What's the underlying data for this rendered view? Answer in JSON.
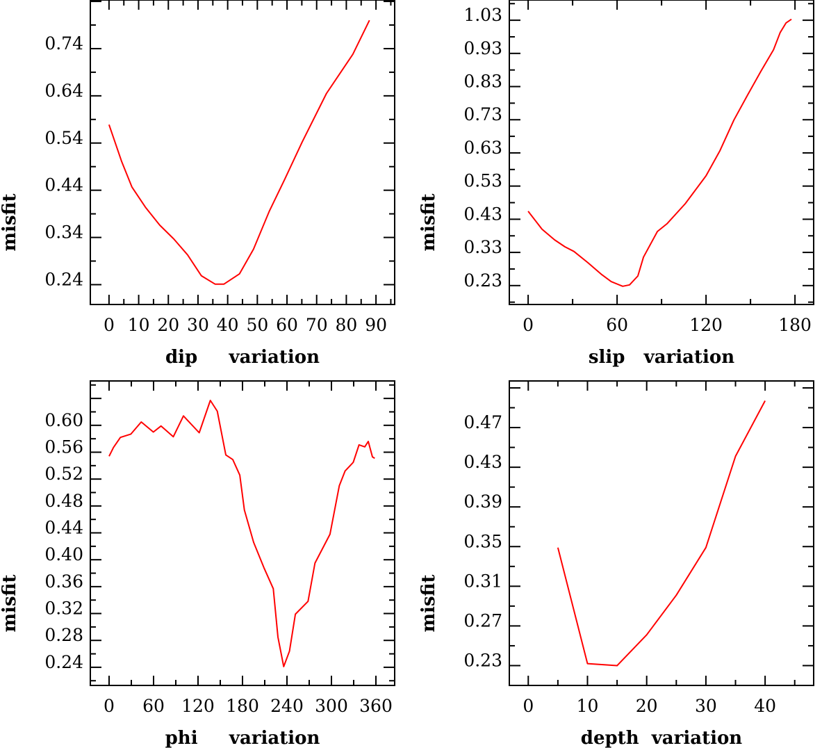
{
  "chart_data": [
    {
      "type": "line",
      "xlabel": "dip     variation",
      "ylabel": "misfit",
      "xlim": [
        -6.3,
        96.3
      ],
      "ylim": [
        0.198,
        0.843
      ],
      "xticks": [
        0,
        10,
        20,
        30,
        40,
        50,
        60,
        70,
        80,
        90
      ],
      "xtick_labels": [
        "0",
        "10",
        "20",
        "30",
        "40",
        "50",
        "60",
        "70",
        "80",
        "90"
      ],
      "yticks": [
        0.24,
        0.34,
        0.44,
        0.54,
        0.64,
        0.74
      ],
      "ytick_labels": [
        "0.24",
        "0.34",
        "0.44",
        "0.54",
        "0.64",
        "0.74"
      ],
      "series": [
        {
          "name": "misfit",
          "color": "#ff0000",
          "x": [
            0,
            4.2,
            7.7,
            12.4,
            17.1,
            21.8,
            26.5,
            31.1,
            35.8,
            38.7,
            44,
            48.7,
            54,
            59.3,
            65.1,
            73.3,
            82.2,
            87.8
          ],
          "y": [
            0.579,
            0.502,
            0.447,
            0.403,
            0.366,
            0.337,
            0.303,
            0.259,
            0.241,
            0.241,
            0.263,
            0.315,
            0.395,
            0.464,
            0.542,
            0.645,
            0.728,
            0.8
          ]
        }
      ]
    },
    {
      "type": "line",
      "xlabel": "slip   variation",
      "ylabel": "misfit",
      "xlim": [
        -12.7,
        192.6
      ],
      "ylim": [
        0.173,
        1.091
      ],
      "xticks": [
        0,
        60,
        120,
        180
      ],
      "xtick_labels": [
        "0",
        "60",
        "120",
        "180"
      ],
      "yticks": [
        0.23,
        0.33,
        0.43,
        0.53,
        0.63,
        0.73,
        0.83,
        0.93,
        1.03
      ],
      "ytick_labels": [
        "0.23",
        "0.33",
        "0.43",
        "0.53",
        "0.63",
        "0.73",
        "0.83",
        "0.93",
        "1.03"
      ],
      "series": [
        {
          "name": "misfit",
          "color": "#ff0000",
          "x": [
            0,
            9.4,
            17.8,
            24.8,
            30.9,
            40.3,
            49.7,
            56,
            63.8,
            68.4,
            74,
            77.8,
            87.2,
            93.8,
            106,
            120,
            129.4,
            138.8,
            148,
            157,
            165.5,
            170,
            174,
            177.6
          ],
          "y": [
            0.454,
            0.4,
            0.368,
            0.347,
            0.333,
            0.299,
            0.263,
            0.242,
            0.228,
            0.232,
            0.259,
            0.316,
            0.393,
            0.417,
            0.477,
            0.561,
            0.637,
            0.729,
            0.804,
            0.876,
            0.941,
            0.993,
            1.022,
            1.033
          ]
        }
      ]
    },
    {
      "type": "line",
      "xlabel": "phi     variation",
      "ylabel": "misfit",
      "xlim": [
        -25.3,
        385.3
      ],
      "ylim": [
        0.213,
        0.666
      ],
      "xticks": [
        0,
        60,
        120,
        180,
        240,
        300,
        360
      ],
      "xtick_labels": [
        "0",
        "60",
        "120",
        "180",
        "240",
        "300",
        "360"
      ],
      "yticks": [
        0.24,
        0.28,
        0.32,
        0.36,
        0.4,
        0.44,
        0.48,
        0.52,
        0.56,
        0.6
      ],
      "ytick_labels": [
        "0.24",
        "0.28",
        "0.32",
        "0.36",
        "0.40",
        "0.44",
        "0.48",
        "0.52",
        "0.56",
        "0.60"
      ],
      "series": [
        {
          "name": "misfit",
          "color": "#ff0000",
          "x": [
            0,
            5.9,
            15.3,
            29.4,
            43.4,
            59.7,
            70,
            86.6,
            100.3,
            121.6,
            136.6,
            146,
            157.5,
            166.9,
            176.3,
            182.5,
            195,
            209,
            221.5,
            227.8,
            235.6,
            243.4,
            251.3,
            268.4,
            277.8,
            298,
            310.6,
            318.4,
            329.4,
            337.2,
            345,
            349.7,
            355.3,
            358.4
          ],
          "y": [
            0.554,
            0.567,
            0.582,
            0.587,
            0.605,
            0.59,
            0.599,
            0.583,
            0.614,
            0.589,
            0.637,
            0.621,
            0.556,
            0.549,
            0.526,
            0.474,
            0.426,
            0.388,
            0.357,
            0.285,
            0.241,
            0.264,
            0.319,
            0.338,
            0.395,
            0.438,
            0.51,
            0.532,
            0.545,
            0.571,
            0.568,
            0.576,
            0.553,
            0.551
          ]
        }
      ]
    },
    {
      "type": "line",
      "xlabel": "depth  variation",
      "ylabel": "misfit",
      "xlim": [
        -3.2,
        48.2
      ],
      "ylim": [
        0.21,
        0.517
      ],
      "xticks": [
        0,
        10,
        20,
        30,
        40
      ],
      "xtick_labels": [
        "0",
        "10",
        "20",
        "30",
        "40"
      ],
      "yticks": [
        0.23,
        0.27,
        0.31,
        0.35,
        0.39,
        0.43,
        0.47
      ],
      "ytick_labels": [
        "0.23",
        "0.27",
        "0.31",
        "0.35",
        "0.39",
        "0.43",
        "0.47"
      ],
      "series": [
        {
          "name": "misfit",
          "color": "#ff0000",
          "x": [
            5,
            10,
            15,
            20,
            25,
            30,
            35,
            40
          ],
          "y": [
            0.349,
            0.232,
            0.23,
            0.261,
            0.301,
            0.349,
            0.441,
            0.497
          ]
        }
      ]
    }
  ]
}
